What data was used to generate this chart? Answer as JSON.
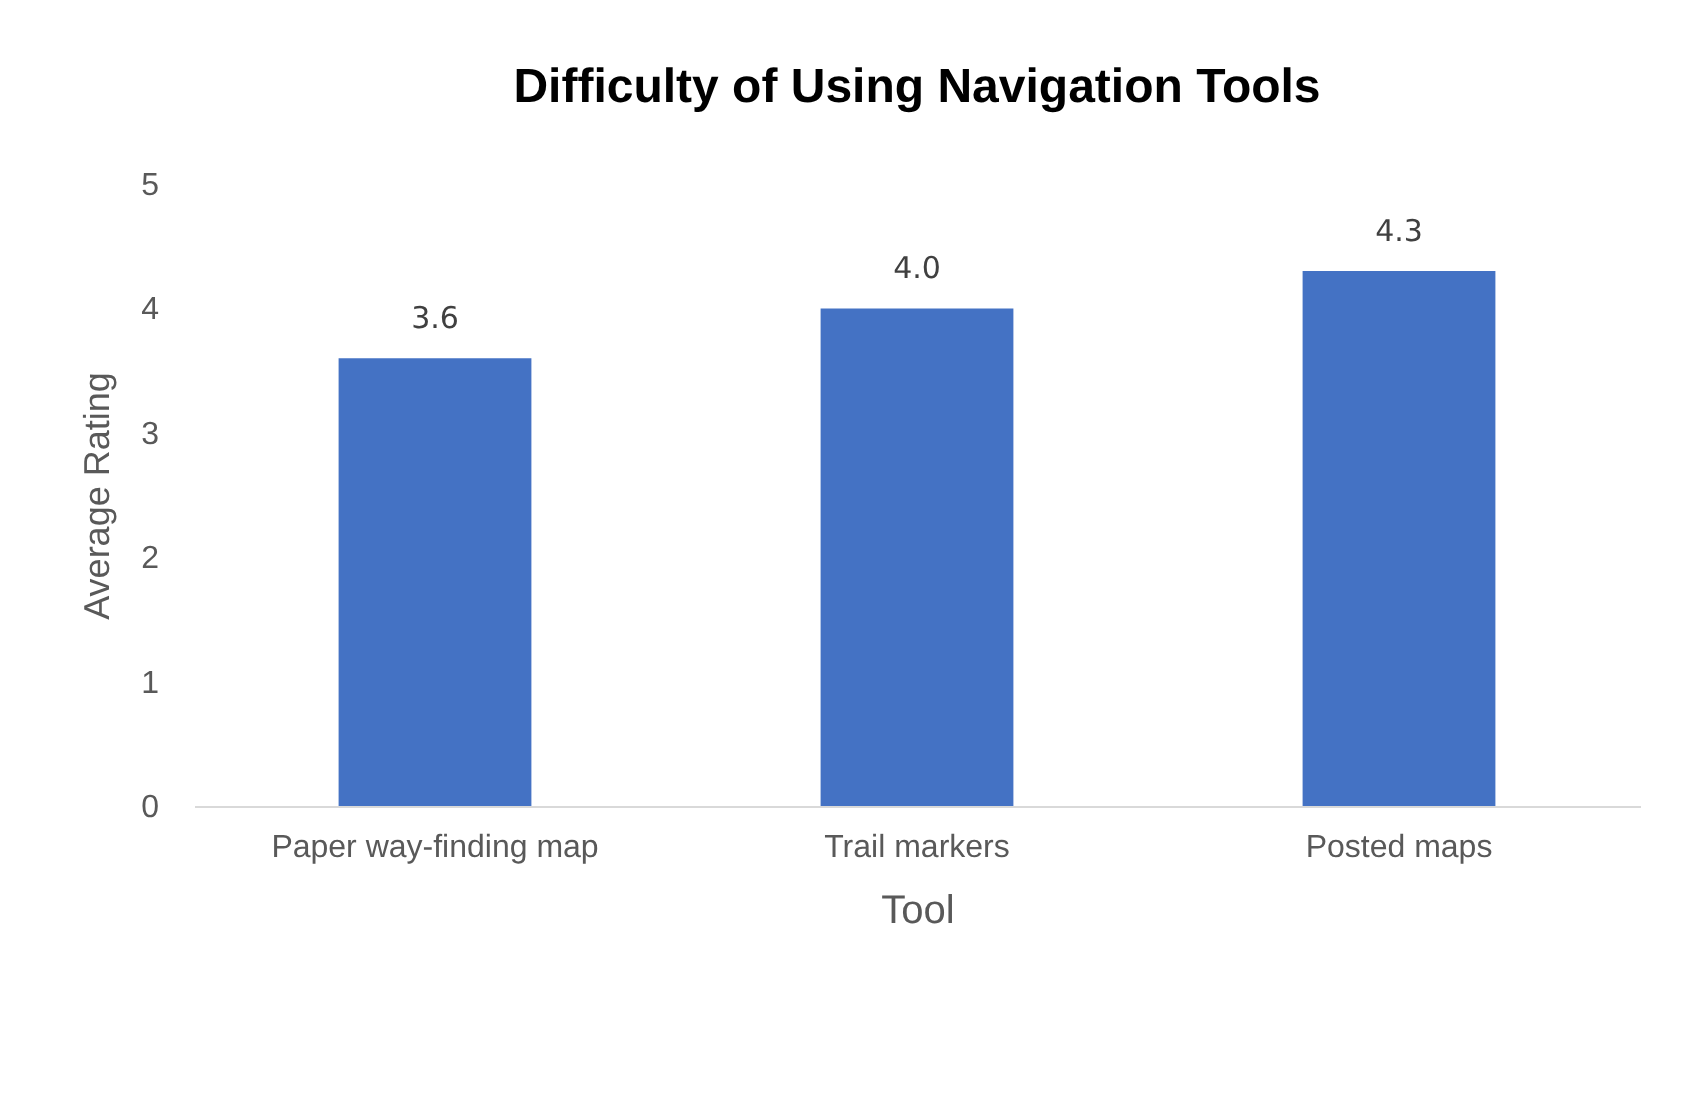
{
  "chart_data": {
    "type": "bar",
    "title": "Difficulty of Using Navigation Tools",
    "xlabel": "Tool",
    "ylabel": "Average Rating",
    "categories": [
      "Paper way-finding map",
      "Trail markers",
      "Posted maps"
    ],
    "values": [
      3.6,
      4.0,
      4.3
    ],
    "value_labels": [
      "3.6",
      "4.0",
      "4.3"
    ],
    "color": "#4472c4",
    "ylim": [
      0,
      5
    ],
    "yticks": [
      0,
      1,
      2,
      3,
      4,
      5
    ],
    "grid": false
  }
}
